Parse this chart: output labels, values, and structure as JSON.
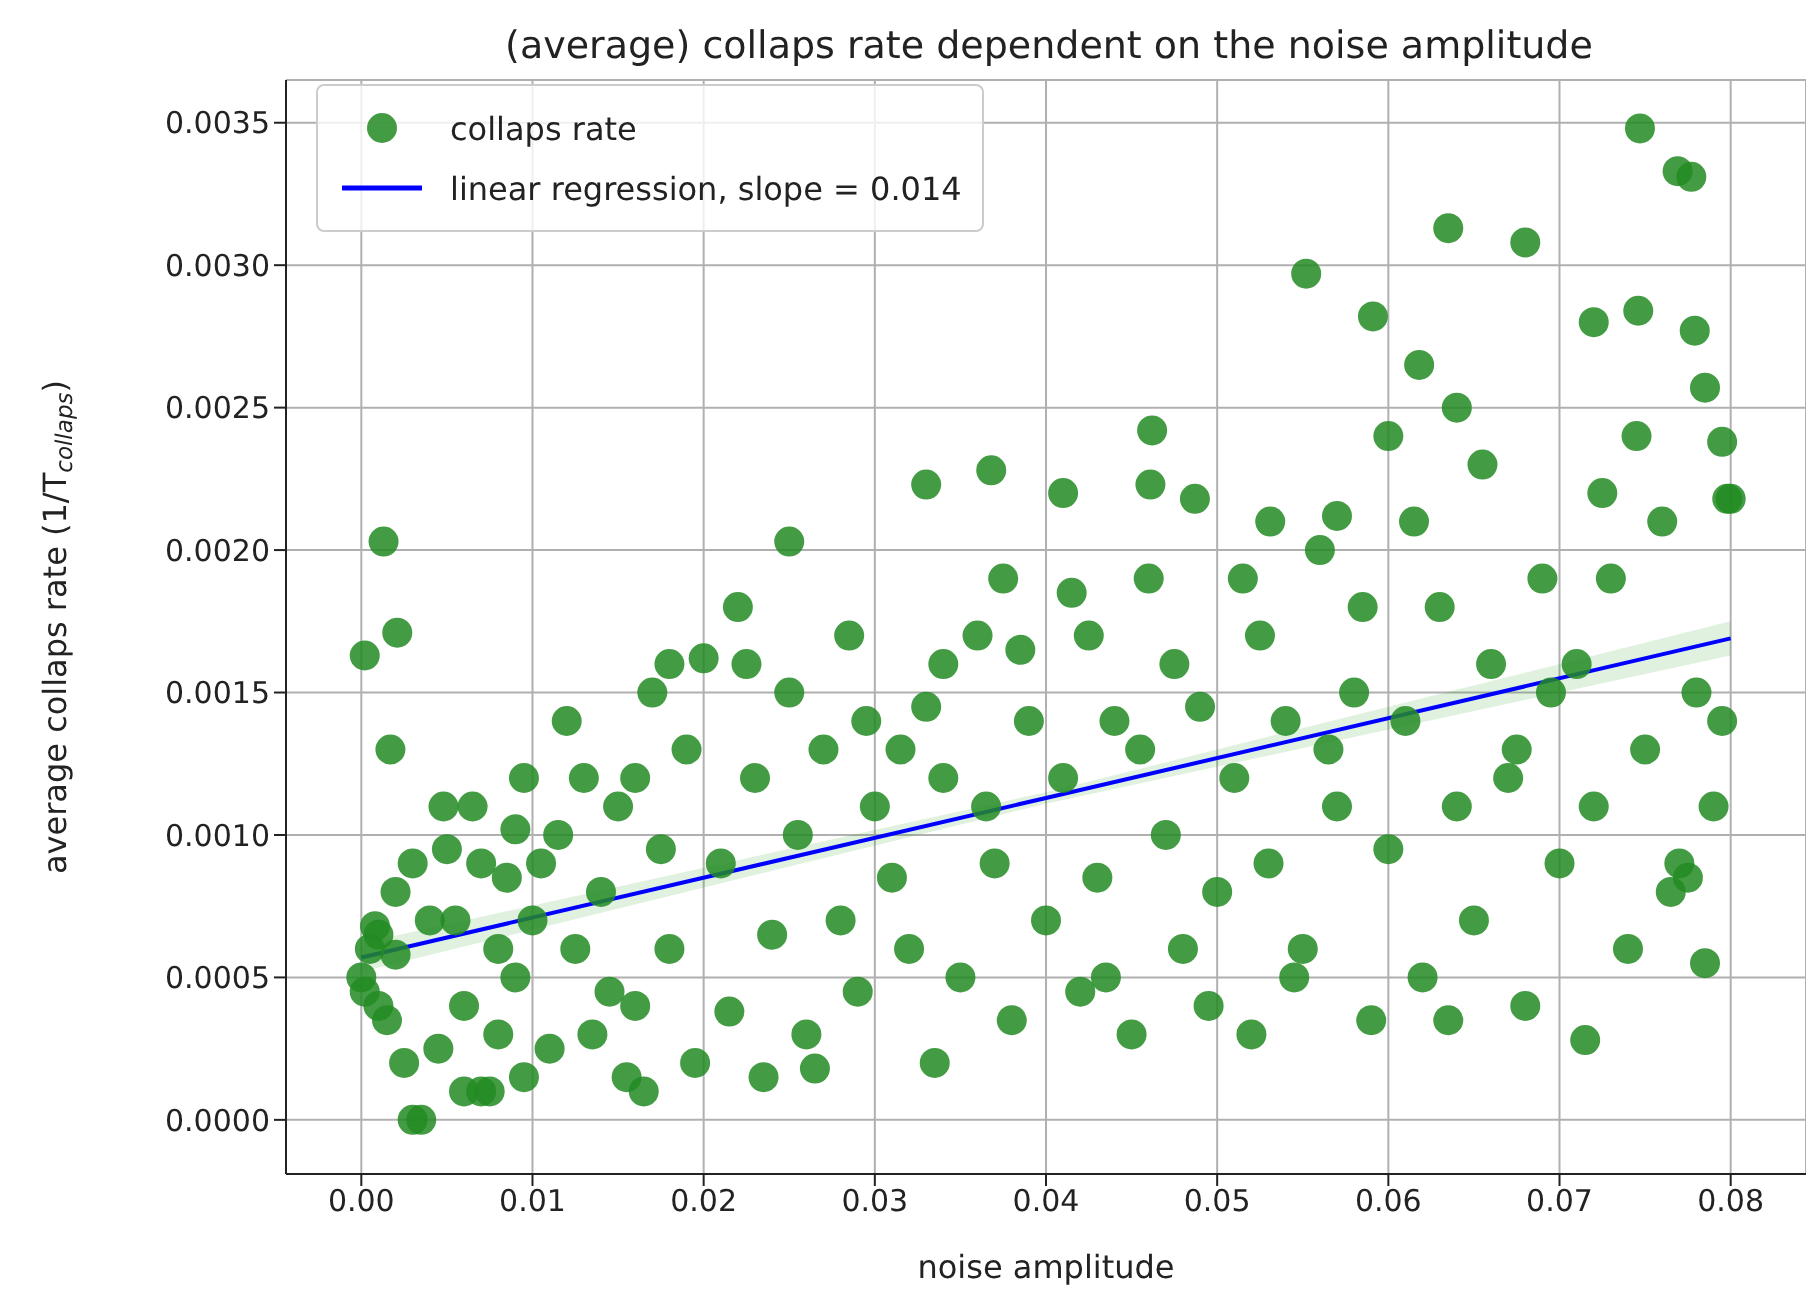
{
  "chart_data": {
    "type": "scatter",
    "title": "(average) collaps rate dependent on the noise amplitude",
    "xlabel": "noise amplitude",
    "ylabel": "average collaps rate (1/T$_{collaps}$)",
    "xlim": [
      -0.0044,
      0.0844
    ],
    "ylim": [
      -0.00019,
      0.00365
    ],
    "xticks": [
      {
        "value": 0,
        "label": "0.00"
      },
      {
        "value": 0.01,
        "label": "0.01"
      },
      {
        "value": 0.02,
        "label": "0.02"
      },
      {
        "value": 0.03,
        "label": "0.03"
      },
      {
        "value": 0.04,
        "label": "0.04"
      },
      {
        "value": 0.05,
        "label": "0.05"
      },
      {
        "value": 0.06,
        "label": "0.06"
      },
      {
        "value": 0.07,
        "label": "0.07"
      },
      {
        "value": 0.08,
        "label": "0.08"
      }
    ],
    "yticks": [
      {
        "value": 0,
        "label": "0.0000"
      },
      {
        "value": 0.0005,
        "label": "0.0005"
      },
      {
        "value": 0.001,
        "label": "0.0010"
      },
      {
        "value": 0.0015,
        "label": "0.0015"
      },
      {
        "value": 0.002,
        "label": "0.0020"
      },
      {
        "value": 0.0025,
        "label": "0.0025"
      },
      {
        "value": 0.003,
        "label": "0.0030"
      },
      {
        "value": 0.0035,
        "label": "0.0035"
      }
    ],
    "grid": true,
    "legend": "top left",
    "series": [
      {
        "name": "collaps rate",
        "marker": "circle",
        "color": "#228b22",
        "x": [
          0.0002,
          0.0013,
          0.0021,
          0.0017,
          0.0747,
          0.0769,
          0.0777,
          0.0635,
          0.068,
          0.0552,
          0.0591,
          0.0618,
          0.0746,
          0.0779,
          0.0785,
          0.072,
          0.025,
          0.033,
          0.0368,
          0.041,
          0.0461,
          0.0462,
          0.0487,
          0.0531,
          0.057,
          0.0795,
          0.0798,
          0,
          0.0002,
          0.0005,
          0.0008,
          0.001,
          0.0015,
          0.002,
          0.0025,
          0.003,
          0.0035,
          0.003,
          0.004,
          0.0045,
          0.005,
          0.0048,
          0.002,
          0.001,
          0.006,
          0.007,
          0.0075,
          0.008,
          0.0085,
          0.009,
          0.0095,
          0.006,
          0.007,
          0.008,
          0.0065,
          0.0095,
          0.009,
          0.01,
          0.0055,
          0.011,
          0.012,
          0.013,
          0.0135,
          0.014,
          0.015,
          0.0155,
          0.016,
          0.017,
          0.0175,
          0.018,
          0.019,
          0.0195,
          0.0115,
          0.0125,
          0.0145,
          0.016,
          0.018,
          0.0105,
          0.0165,
          0.02,
          0.021,
          0.0215,
          0.022,
          0.023,
          0.0235,
          0.024,
          0.025,
          0.0255,
          0.026,
          0.027,
          0.028,
          0.0285,
          0.029,
          0.03,
          0.0225,
          0.0265,
          0.0295,
          0.031,
          0.032,
          0.033,
          0.0335,
          0.034,
          0.035,
          0.036,
          0.037,
          0.0375,
          0.038,
          0.039,
          0.04,
          0.0315,
          0.0365,
          0.0385,
          0.034,
          0.041,
          0.042,
          0.0425,
          0.043,
          0.044,
          0.045,
          0.046,
          0.047,
          0.048,
          0.049,
          0.05,
          0.0415,
          0.0435,
          0.0455,
          0.0475,
          0.0495,
          0.051,
          0.052,
          0.0525,
          0.053,
          0.054,
          0.055,
          0.056,
          0.057,
          0.058,
          0.059,
          0.06,
          0.0515,
          0.0545,
          0.0565,
          0.0585,
          0.06,
          0.061,
          0.062,
          0.063,
          0.064,
          0.065,
          0.066,
          0.067,
          0.068,
          0.069,
          0.07,
          0.0615,
          0.0635,
          0.0655,
          0.0675,
          0.0695,
          0.064,
          0.071,
          0.0715,
          0.072,
          0.073,
          0.074,
          0.075,
          0.076,
          0.077,
          0.0775,
          0.078,
          0.079,
          0.0795,
          0.08,
          0.0785,
          0.0765,
          0.0725,
          0.0745
        ],
        "values": [
          0.00163,
          0.00203,
          0.00171,
          0.0013,
          0.00348,
          0.00333,
          0.00331,
          0.00313,
          0.00308,
          0.00297,
          0.00282,
          0.00265,
          0.00284,
          0.00277,
          0.00257,
          0.0028,
          0.00203,
          0.00223,
          0.00228,
          0.0022,
          0.00223,
          0.00242,
          0.00218,
          0.0021,
          0.00212,
          0.00238,
          0.00218,
          0.0005,
          0.00045,
          0.0006,
          0.00068,
          0.0004,
          0.00035,
          0.0008,
          0.0002,
          0.0,
          0.0,
          0.0009,
          0.0007,
          0.00025,
          0.00095,
          0.0011,
          0.00058,
          0.00065,
          0.0001,
          0.0001,
          0.0001,
          0.0003,
          0.00085,
          0.0005,
          0.0012,
          0.0004,
          0.0009,
          0.0006,
          0.0011,
          0.00015,
          0.00102,
          0.0007,
          0.0007,
          0.00025,
          0.0014,
          0.0012,
          0.0003,
          0.0008,
          0.0011,
          0.00015,
          0.0004,
          0.0015,
          0.00095,
          0.0006,
          0.0013,
          0.0002,
          0.001,
          0.0006,
          0.00045,
          0.0012,
          0.0016,
          0.0009,
          0.0001,
          0.00162,
          0.0009,
          0.00038,
          0.0018,
          0.0012,
          0.00015,
          0.00065,
          0.0015,
          0.001,
          0.0003,
          0.0013,
          0.0007,
          0.0017,
          0.00045,
          0.0011,
          0.0016,
          0.00018,
          0.0014,
          0.00085,
          0.0006,
          0.00145,
          0.0002,
          0.0012,
          0.0005,
          0.0017,
          0.0009,
          0.0019,
          0.00035,
          0.0014,
          0.0007,
          0.0013,
          0.0011,
          0.00165,
          0.0016,
          0.0012,
          0.00045,
          0.0017,
          0.00085,
          0.0014,
          0.0003,
          0.0019,
          0.001,
          0.0006,
          0.00145,
          0.0008,
          0.00185,
          0.0005,
          0.0013,
          0.0016,
          0.0004,
          0.0012,
          0.0003,
          0.0017,
          0.0009,
          0.0014,
          0.0006,
          0.002,
          0.0011,
          0.0015,
          0.00035,
          0.00095,
          0.0019,
          0.0005,
          0.0013,
          0.0018,
          0.0024,
          0.0014,
          0.0005,
          0.0018,
          0.0011,
          0.0007,
          0.0016,
          0.0012,
          0.0004,
          0.0019,
          0.0009,
          0.0021,
          0.00035,
          0.0023,
          0.0013,
          0.0015,
          0.0025,
          0.0016,
          0.00028,
          0.0011,
          0.0019,
          0.0006,
          0.0013,
          0.0021,
          0.0009,
          0.00085,
          0.0015,
          0.0011,
          0.0014,
          0.00218,
          0.00055,
          0.0008,
          0.0022,
          0.0024
        ]
      },
      {
        "name": "linear regression, slope = 0.014",
        "type": "line",
        "color": "#0000ff",
        "x": [
          0,
          0.04,
          0.08
        ],
        "values": [
          0.00057,
          0.00113,
          0.00169
        ],
        "lower": [
          0.00052,
          0.00111,
          0.00163
        ],
        "upper": [
          0.00062,
          0.00115,
          0.00175
        ]
      }
    ]
  }
}
